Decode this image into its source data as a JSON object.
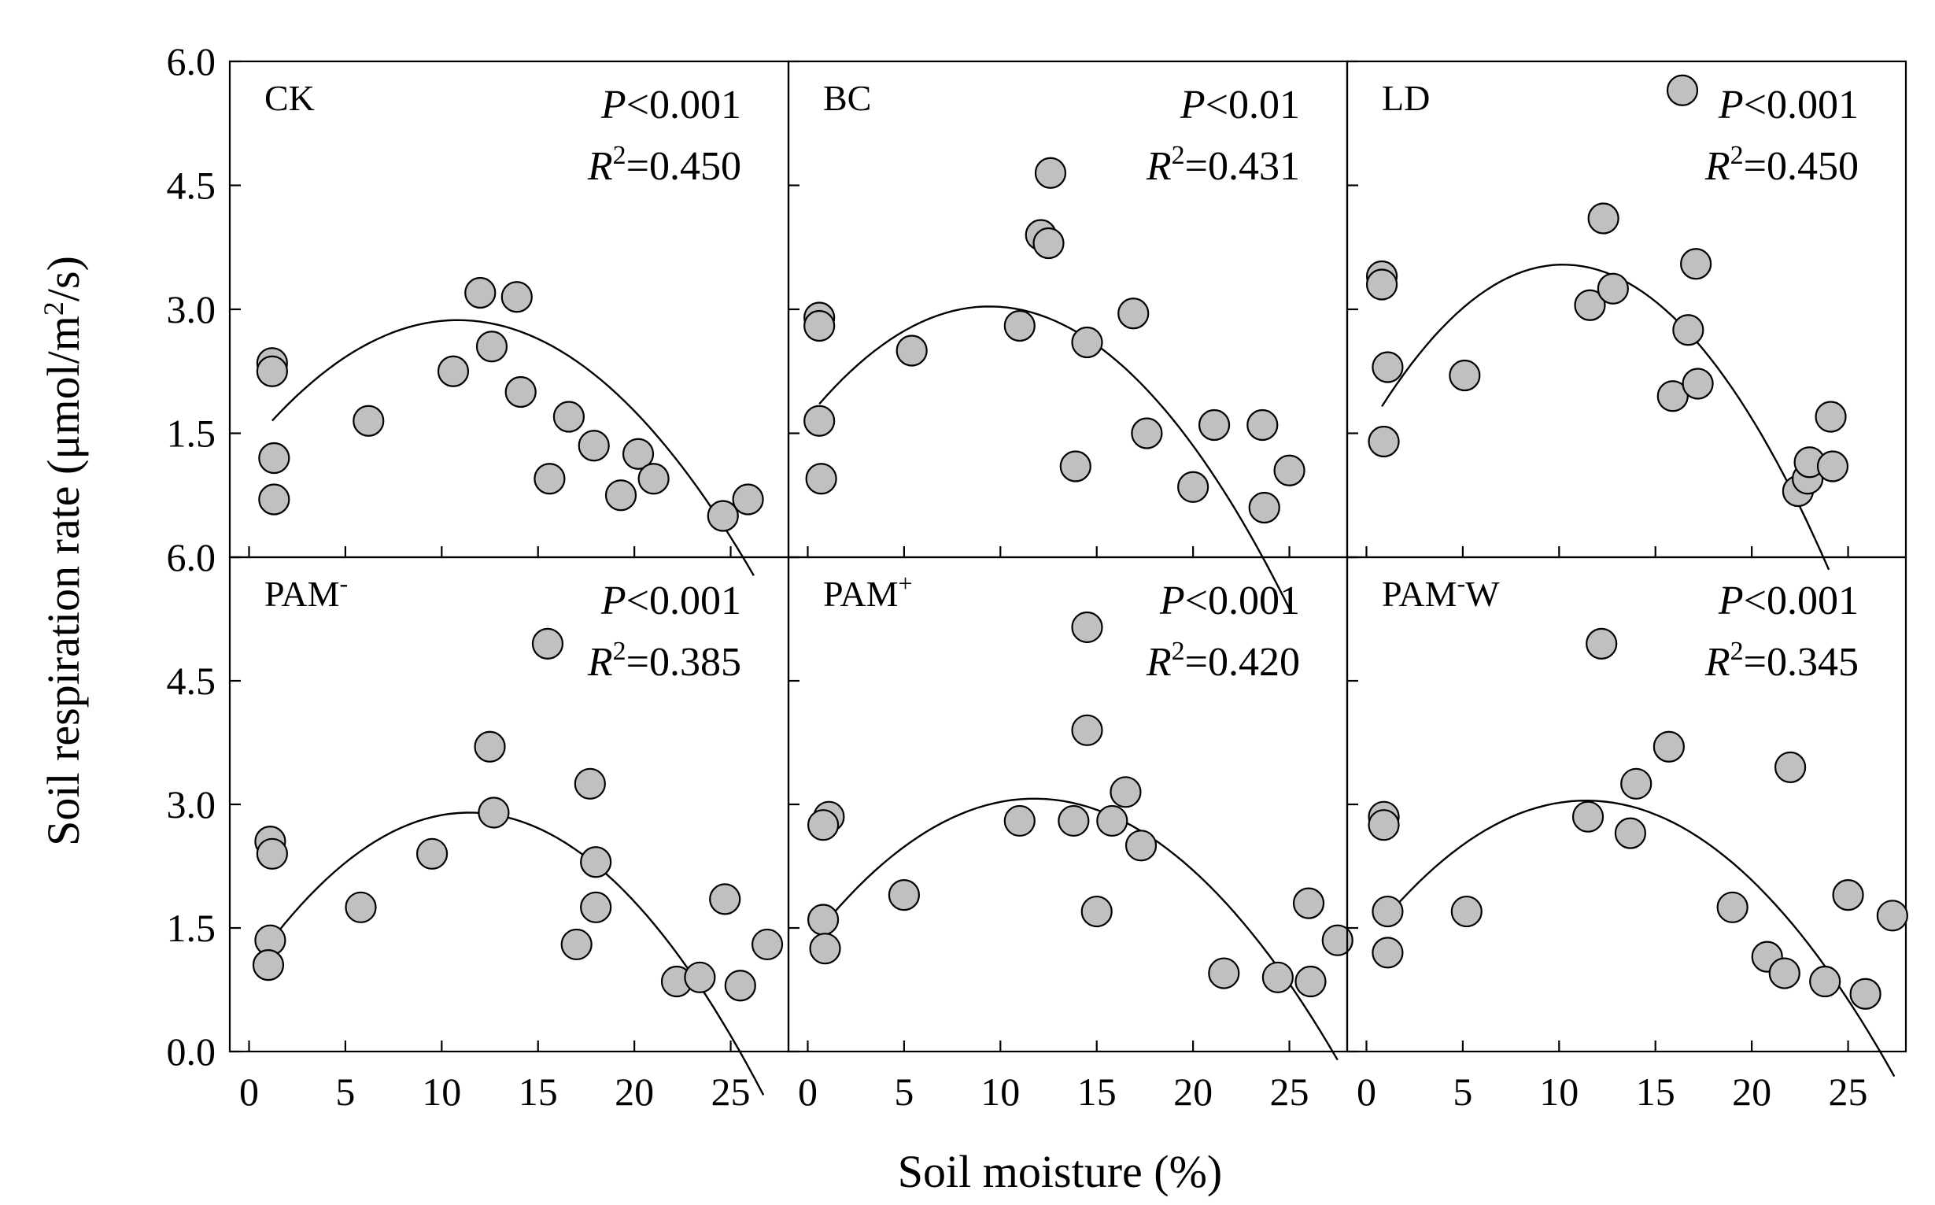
{
  "figure": {
    "xlabel": "Soil moisture (%)",
    "ylabel": "Soil respiration rate (μmol/m",
    "ylabel_sup": "2",
    "ylabel_tail": "/s)"
  },
  "chart_data": [
    {
      "type": "scatter",
      "name": "CK",
      "label_main": "CK",
      "label_sup": "",
      "label_tail": "",
      "p_text": "<0.001",
      "r2_text": "=0.450",
      "xlim": [
        -1,
        28
      ],
      "ylim": [
        0,
        6
      ],
      "xticks": [
        "0",
        "5",
        "10",
        "15",
        "20",
        "25"
      ],
      "yticks": [
        "6.0",
        "4.5",
        "3.0",
        "1.5",
        ""
      ],
      "points": [
        [
          1.2,
          2.35
        ],
        [
          1.2,
          2.25
        ],
        [
          1.3,
          1.2
        ],
        [
          1.3,
          0.7
        ],
        [
          6.2,
          1.65
        ],
        [
          10.6,
          2.25
        ],
        [
          12.0,
          3.2
        ],
        [
          12.6,
          2.55
        ],
        [
          13.9,
          3.15
        ],
        [
          14.1,
          2.0
        ],
        [
          15.6,
          0.95
        ],
        [
          16.6,
          1.7
        ],
        [
          17.9,
          1.35
        ],
        [
          19.3,
          0.75
        ],
        [
          20.2,
          1.25
        ],
        [
          21.0,
          0.95
        ],
        [
          24.6,
          0.5
        ],
        [
          25.9,
          0.7
        ]
      ],
      "fit": {
        "a": -0.0131,
        "b": 0.284,
        "c": 1.33,
        "x0": 1.2,
        "x1": 26.2
      }
    },
    {
      "type": "scatter",
      "name": "BC",
      "label_main": "BC",
      "label_sup": "",
      "label_tail": "",
      "p_text": "<0.01",
      "r2_text": "=0.431",
      "xlim": [
        -1,
        28
      ],
      "ylim": [
        0,
        6
      ],
      "xticks": [
        "0",
        "5",
        "10",
        "15",
        "20",
        "25"
      ],
      "yticks": [
        "",
        "4.5",
        "3.0",
        "1.5",
        ""
      ],
      "points": [
        [
          0.6,
          2.9
        ],
        [
          0.6,
          2.8
        ],
        [
          0.6,
          1.65
        ],
        [
          0.7,
          0.95
        ],
        [
          5.4,
          2.5
        ],
        [
          11.0,
          2.8
        ],
        [
          12.1,
          3.9
        ],
        [
          12.5,
          3.8
        ],
        [
          12.6,
          4.65
        ],
        [
          13.9,
          1.1
        ],
        [
          14.5,
          2.6
        ],
        [
          16.9,
          2.95
        ],
        [
          17.6,
          1.5
        ],
        [
          20.0,
          0.85
        ],
        [
          21.1,
          1.6
        ],
        [
          23.6,
          1.6
        ],
        [
          23.7,
          0.6
        ],
        [
          25.0,
          1.05
        ]
      ],
      "fit": {
        "a": -0.0151,
        "b": 0.285,
        "c": 1.69,
        "x0": 0.6,
        "x1": 25.0
      }
    },
    {
      "type": "scatter",
      "name": "LD",
      "label_main": "LD",
      "label_sup": "",
      "label_tail": "",
      "p_text": "<0.001",
      "r2_text": "=0.450",
      "xlim": [
        -1,
        28
      ],
      "ylim": [
        0,
        6
      ],
      "xticks": [
        "0",
        "5",
        "10",
        "15",
        "20",
        "25"
      ],
      "yticks": [
        "",
        "4.5",
        "3.0",
        "1.5",
        ""
      ],
      "points": [
        [
          0.8,
          3.4
        ],
        [
          0.8,
          3.3
        ],
        [
          0.9,
          1.4
        ],
        [
          1.1,
          2.3
        ],
        [
          5.1,
          2.2
        ],
        [
          11.6,
          3.05
        ],
        [
          12.3,
          4.1
        ],
        [
          12.8,
          3.25
        ],
        [
          15.9,
          1.95
        ],
        [
          16.4,
          5.65
        ],
        [
          16.7,
          2.75
        ],
        [
          17.1,
          3.55
        ],
        [
          17.2,
          2.1
        ],
        [
          22.4,
          0.8
        ],
        [
          22.9,
          0.95
        ],
        [
          23.0,
          1.15
        ],
        [
          24.2,
          1.1
        ],
        [
          24.1,
          1.7
        ]
      ],
      "fit": {
        "a": -0.0194,
        "b": 0.396,
        "c": 1.52,
        "x0": 0.8,
        "x1": 24.0
      }
    },
    {
      "type": "scatter",
      "name": "PAM-",
      "label_main": "PAM",
      "label_sup": "-",
      "label_tail": "",
      "p_text": "<0.001",
      "r2_text": "=0.385",
      "xlim": [
        -1,
        28
      ],
      "ylim": [
        0,
        6
      ],
      "xticks": [
        "0",
        "5",
        "10",
        "15",
        "20",
        "25"
      ],
      "yticks": [
        "6.0",
        "4.5",
        "3.0",
        "1.5",
        "0.0"
      ],
      "points": [
        [
          1.1,
          2.55
        ],
        [
          1.2,
          2.4
        ],
        [
          1.1,
          1.35
        ],
        [
          1.0,
          1.05
        ],
        [
          5.8,
          1.75
        ],
        [
          9.5,
          2.4
        ],
        [
          12.5,
          3.7
        ],
        [
          12.7,
          2.9
        ],
        [
          15.5,
          4.95
        ],
        [
          17.0,
          1.3
        ],
        [
          17.7,
          3.25
        ],
        [
          18.0,
          2.3
        ],
        [
          18.0,
          1.75
        ],
        [
          22.2,
          0.85
        ],
        [
          23.4,
          0.9
        ],
        [
          24.7,
          1.85
        ],
        [
          25.5,
          0.8
        ],
        [
          26.9,
          1.3
        ]
      ],
      "fit": {
        "a": -0.0147,
        "b": 0.336,
        "c": 0.98,
        "x0": 1.0,
        "x1": 26.7
      }
    },
    {
      "type": "scatter",
      "name": "PAM+",
      "label_main": "PAM",
      "label_sup": "+",
      "label_tail": "",
      "p_text": "<0.001",
      "r2_text": "=0.420",
      "xlim": [
        -1,
        28
      ],
      "ylim": [
        0,
        6
      ],
      "xticks": [
        "0",
        "5",
        "10",
        "15",
        "20",
        "25"
      ],
      "yticks": [
        "",
        "4.5",
        "3.0",
        "1.5",
        ""
      ],
      "points": [
        [
          1.1,
          2.85
        ],
        [
          0.8,
          2.75
        ],
        [
          0.8,
          1.6
        ],
        [
          0.9,
          1.25
        ],
        [
          5.0,
          1.9
        ],
        [
          11.0,
          2.8
        ],
        [
          13.8,
          2.8
        ],
        [
          14.5,
          3.9
        ],
        [
          14.5,
          5.15
        ],
        [
          15.0,
          1.7
        ],
        [
          15.8,
          2.8
        ],
        [
          16.5,
          3.15
        ],
        [
          17.3,
          2.5
        ],
        [
          21.6,
          0.95
        ],
        [
          24.4,
          0.9
        ],
        [
          26.0,
          1.8
        ],
        [
          26.1,
          0.85
        ],
        [
          27.5,
          1.35
        ]
      ],
      "fit": {
        "a": -0.0128,
        "b": 0.301,
        "c": 1.3,
        "x0": 0.8,
        "x1": 27.5
      }
    },
    {
      "type": "scatter",
      "name": "PAM-W",
      "label_main": "PAM",
      "label_sup": "-",
      "label_tail": "W",
      "p_text": "<0.001",
      "r2_text": "=0.345",
      "xlim": [
        -1,
        28
      ],
      "ylim": [
        0,
        6
      ],
      "xticks": [
        "0",
        "5",
        "10",
        "15",
        "20",
        "25"
      ],
      "yticks": [
        "",
        "4.5",
        "3.0",
        "1.5",
        ""
      ],
      "points": [
        [
          0.9,
          2.85
        ],
        [
          0.9,
          2.75
        ],
        [
          1.1,
          1.7
        ],
        [
          1.1,
          1.2
        ],
        [
          5.2,
          1.7
        ],
        [
          11.5,
          2.85
        ],
        [
          12.2,
          4.95
        ],
        [
          13.7,
          2.65
        ],
        [
          14.0,
          3.25
        ],
        [
          15.7,
          3.7
        ],
        [
          19.0,
          1.75
        ],
        [
          20.8,
          1.15
        ],
        [
          21.7,
          0.95
        ],
        [
          22.0,
          3.45
        ],
        [
          23.8,
          0.85
        ],
        [
          25.0,
          1.9
        ],
        [
          25.9,
          0.7
        ],
        [
          27.3,
          1.65
        ]
      ],
      "fit": {
        "a": -0.0131,
        "b": 0.299,
        "c": 1.34,
        "x0": 0.9,
        "x1": 27.4
      }
    }
  ]
}
